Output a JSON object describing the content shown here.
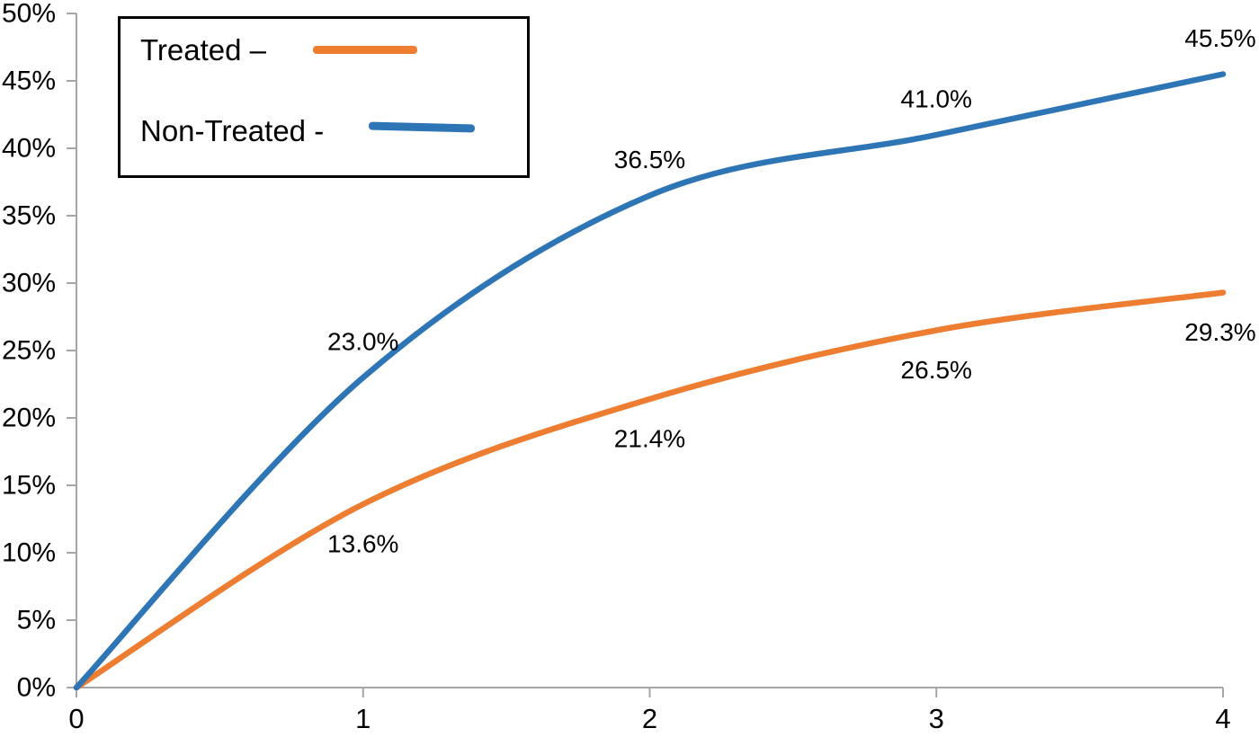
{
  "chart_data": {
    "type": "line",
    "x": [
      0,
      1,
      2,
      3,
      4
    ],
    "xlim": [
      0,
      4
    ],
    "ylim": [
      0,
      50
    ],
    "x_tick_values": [
      0,
      1,
      2,
      3,
      4
    ],
    "x_tick_labels": [
      "0",
      "1",
      "2",
      "3",
      "4"
    ],
    "y_tick_values": [
      0,
      5,
      10,
      15,
      20,
      25,
      30,
      35,
      40,
      45,
      50
    ],
    "y_tick_labels": [
      "0%",
      "5%",
      "10%",
      "15%",
      "20%",
      "25%",
      "30%",
      "35%",
      "40%",
      "45%",
      "50%"
    ],
    "grid": false,
    "axis_color": "#A6A6A6",
    "text_color": "#000000",
    "series": [
      {
        "name": "Treated",
        "color": "#ED7D31",
        "values": [
          0,
          13.6,
          21.4,
          26.5,
          29.3
        ],
        "point_labels": [
          "",
          "13.6%",
          "21.4%",
          "26.5%",
          "29.3%"
        ],
        "label_side": "below"
      },
      {
        "name": "Non-Treated",
        "color": "#2E75B6",
        "values": [
          0,
          23.0,
          36.5,
          41.0,
          45.5
        ],
        "point_labels": [
          "",
          "23.0%",
          "36.5%",
          "41.0%",
          "45.5%"
        ],
        "label_side": "above"
      }
    ],
    "legend": {
      "position": "top-left",
      "items": [
        {
          "label": "Treated –",
          "color": "#ED7D31"
        },
        {
          "label": "Non-Treated -",
          "color": "#2E75B6"
        }
      ]
    }
  }
}
